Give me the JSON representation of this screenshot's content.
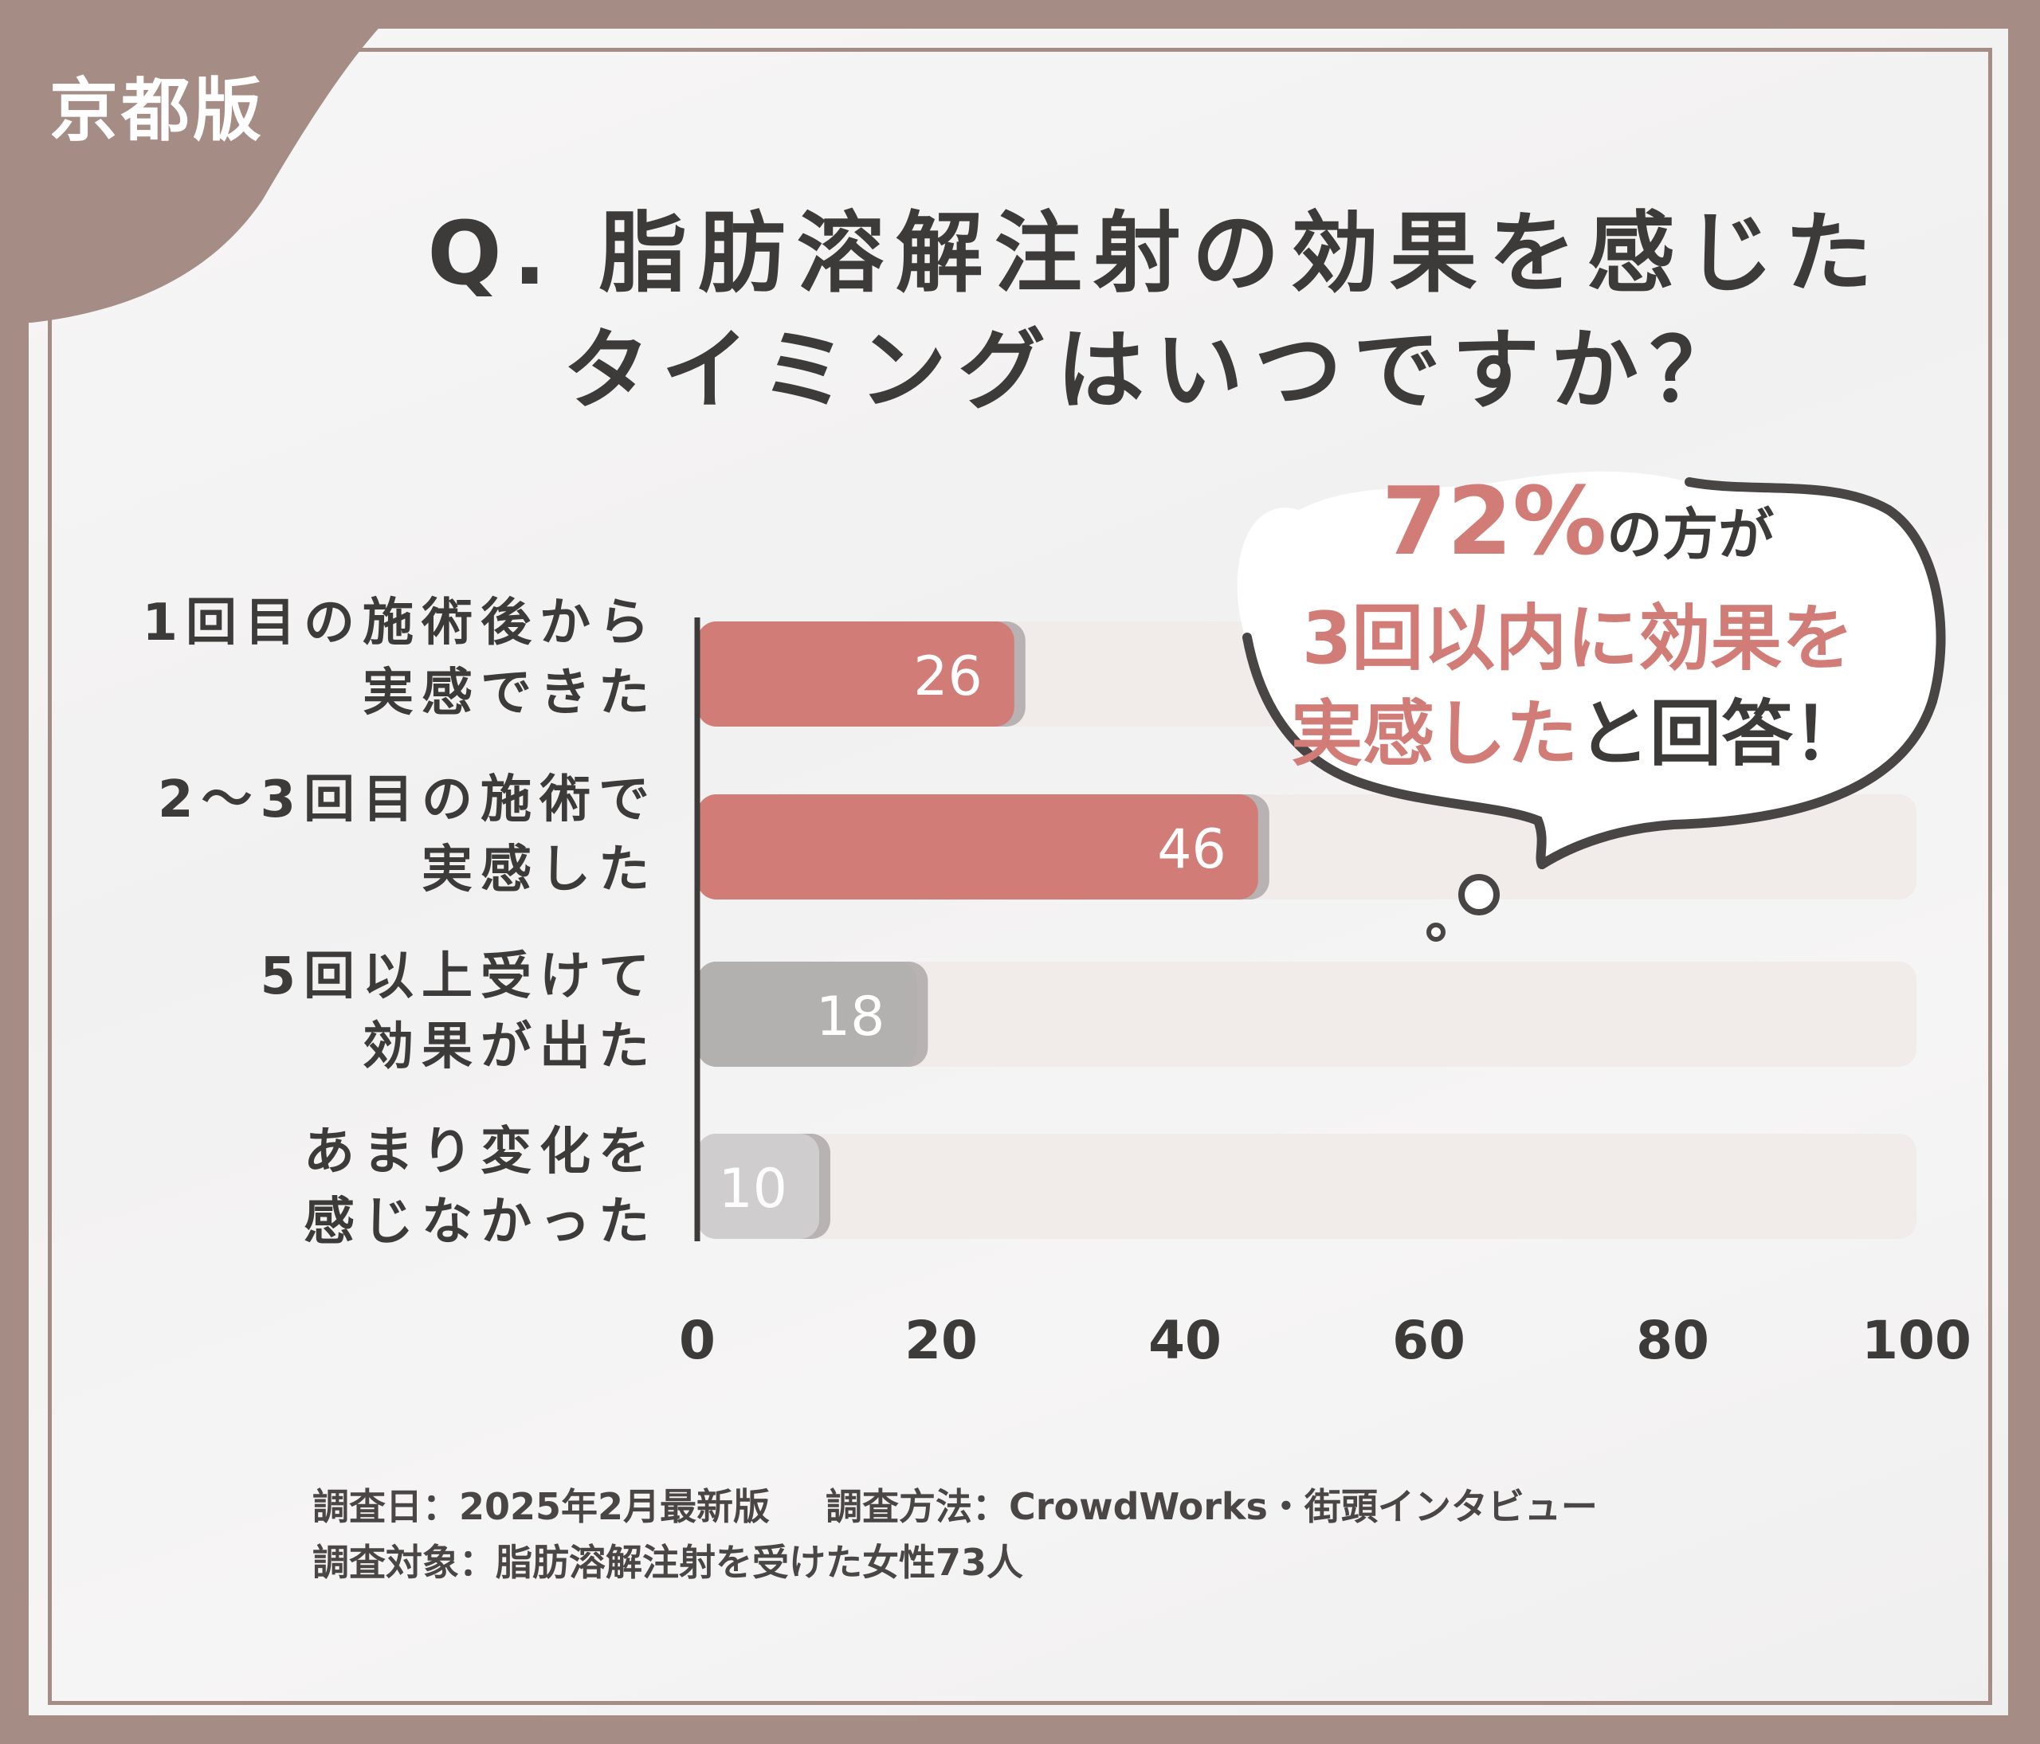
{
  "badge": {
    "label": "京都版"
  },
  "title": {
    "line1": "Q. 脂肪溶解注射の効果を感じた",
    "line2": "タイミングはいつですか？"
  },
  "chart_data": {
    "type": "bar",
    "orientation": "horizontal",
    "categories": [
      "1回目の施術後から実感できた",
      "2〜3回目の施術で実感した",
      "5回以上受けて効果が出た",
      "あまり変化を感じなかった"
    ],
    "category_lines": [
      [
        "1回目の施術後から",
        "実感できた"
      ],
      [
        "2〜3回目の施術で",
        "実感した"
      ],
      [
        "5回以上受けて",
        "効果が出た"
      ],
      [
        "あまり変化を",
        "感じなかった"
      ]
    ],
    "values": [
      26,
      46,
      18,
      10
    ],
    "value_labels": [
      "26",
      "46",
      "18",
      "10"
    ],
    "xlim": [
      0,
      100
    ],
    "xticks": [
      0,
      20,
      40,
      60,
      80,
      100
    ],
    "xtick_labels": [
      "0",
      "20",
      "40",
      "60",
      "80",
      "100"
    ],
    "bar_colors": [
      "#d27c77",
      "#d27c77",
      "#b3b0b0",
      "#cfcdcd"
    ],
    "track_color": "#f1ebea",
    "grid": false
  },
  "callout": {
    "percent": "72%",
    "line1_suffix": "の方が",
    "line2": "3回以内に効果を",
    "line3_highlight": "実感した",
    "line3_suffix": "と回答！"
  },
  "footer": {
    "line1_a": "調査日：2025年2月最新版",
    "line1_b": "調査方法：CrowdWorks・街頭インタビュー",
    "line2": "調査対象：脂肪溶解注射を受けた女性73人"
  },
  "colors": {
    "frame": "#a58c85",
    "accent": "#d27c77",
    "text": "#3d3a3a"
  }
}
